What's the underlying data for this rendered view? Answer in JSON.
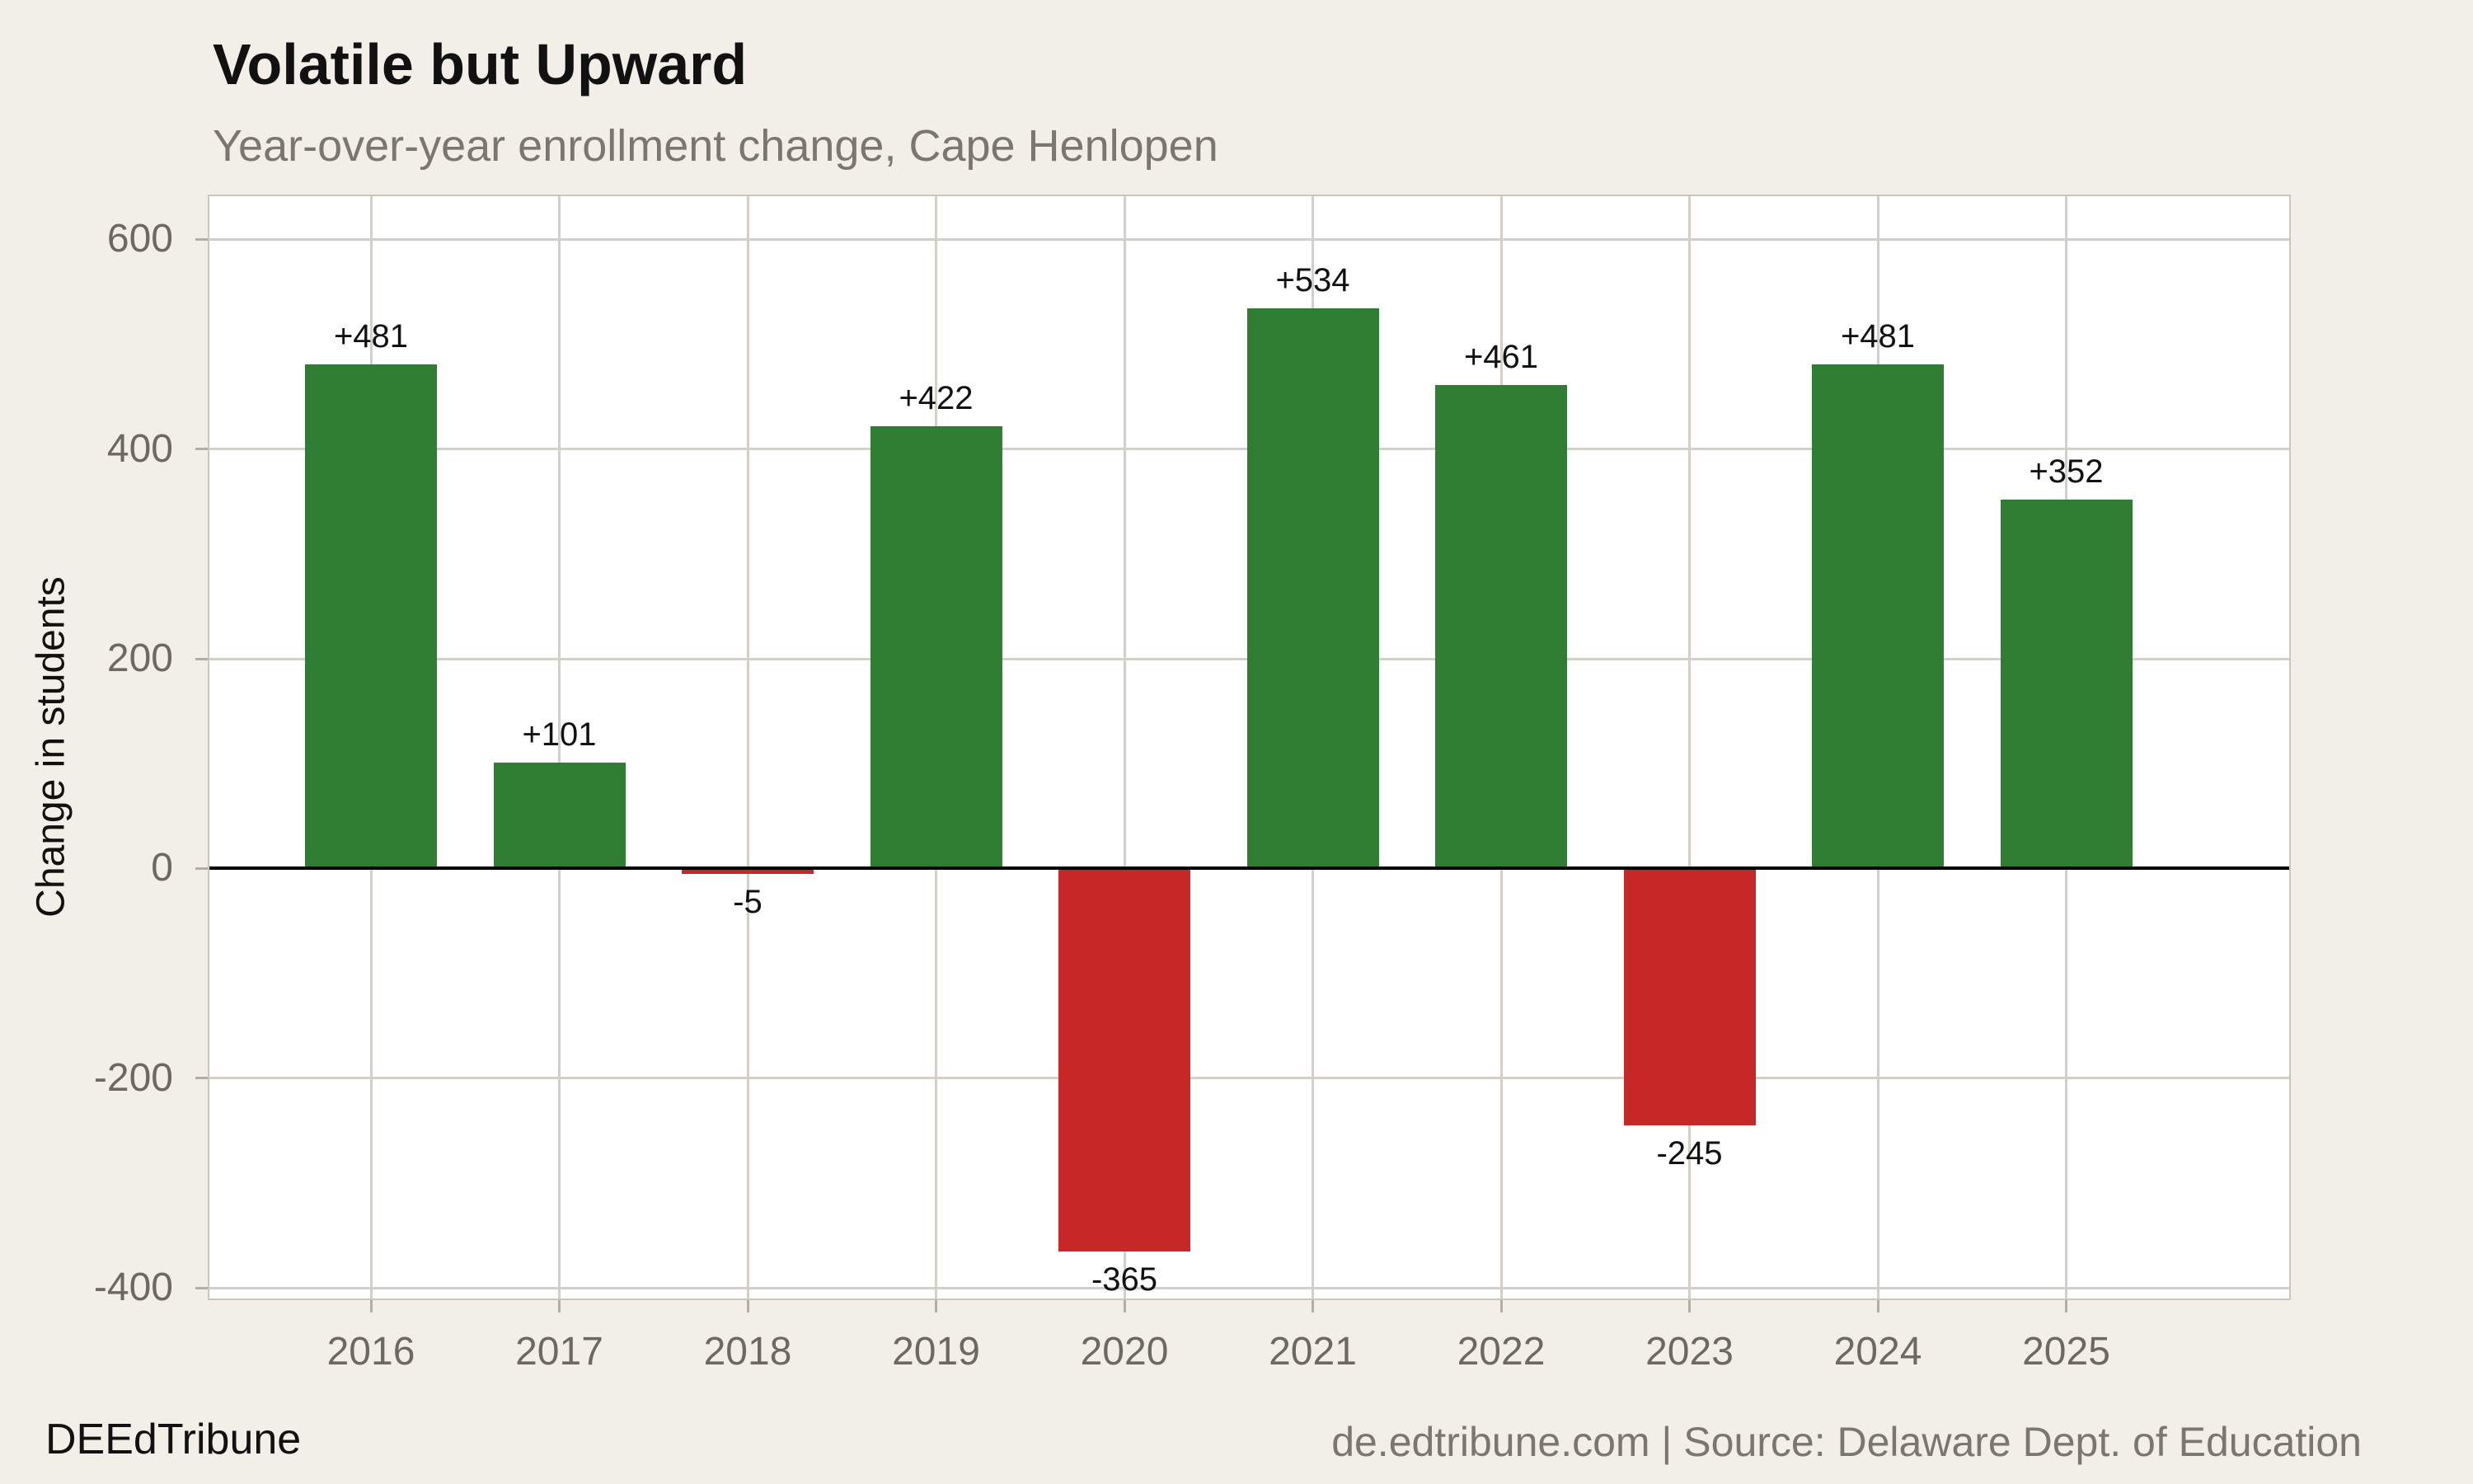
{
  "header": {
    "title": "Volatile but Upward",
    "subtitle": "Year-over-year enrollment change, Cape Henlopen"
  },
  "y_axis": {
    "label": "Change in students"
  },
  "footer": {
    "brand": "DEEdTribune",
    "attribution": "de.edtribune.com | Source: Delaware Dept. of Education"
  },
  "colors": {
    "background": "#f2efe9",
    "plot_background": "#ffffff",
    "grid": "#d5d0c7",
    "frame": "#ccc6bc",
    "tick": "#b3ada2",
    "zero_line": "#000000",
    "positive_bar": "#2e7d32",
    "negative_bar": "#c62828",
    "axis_text": "#6d6961",
    "muted_text": "#7b776e",
    "text": "#111111"
  },
  "chart_data": {
    "type": "bar",
    "title": "Volatile but Upward",
    "subtitle": "Year-over-year enrollment change, Cape Henlopen",
    "xlabel": "",
    "ylabel": "Change in students",
    "categories": [
      "2016",
      "2017",
      "2018",
      "2019",
      "2020",
      "2021",
      "2022",
      "2023",
      "2024",
      "2025"
    ],
    "values": [
      481,
      101,
      -5,
      422,
      -365,
      534,
      461,
      -245,
      481,
      352
    ],
    "bar_labels": [
      "+481",
      "+101",
      "-5",
      "+422",
      "-365",
      "+534",
      "+461",
      "-245",
      "+481",
      "+352"
    ],
    "yticks": [
      600,
      400,
      200,
      0,
      -200,
      -400
    ],
    "ytick_labels": [
      "600",
      "400",
      "200",
      "0",
      "-200",
      "-400"
    ],
    "ylim": [
      -410,
      641
    ],
    "grid": true,
    "legend": "none",
    "color_rule": "positive bars green, negative bars red",
    "zero_baseline": true
  }
}
